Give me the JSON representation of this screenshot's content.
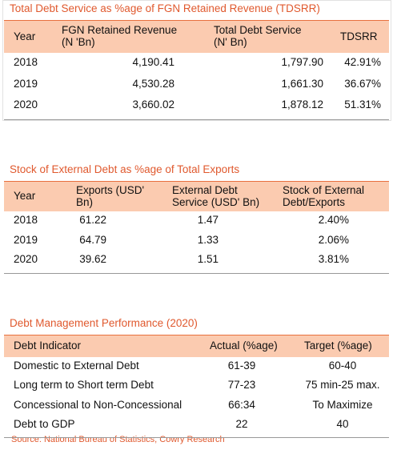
{
  "tables": [
    {
      "title": "Total Debt Service as %age of FGN Retained Revenue (TDSRR)",
      "headers": [
        "Year",
        "FGN Retained Revenue\n(N 'Bn)",
        "Total Debt Service\n(N' Bn)",
        "TDSRR"
      ],
      "rows": [
        [
          "2018",
          "4,190.41",
          "1,797.90",
          "42.91%"
        ],
        [
          "2019",
          "4,530.28",
          "1,661.30",
          "36.67%"
        ],
        [
          "2020",
          "3,660.02",
          "1,878.12",
          "51.31%"
        ]
      ]
    },
    {
      "title": "Stock of External Debt as %age of Total Exports",
      "headers": [
        "Year",
        "Exports (USD'\nBn)",
        "External Debt\nService (USD' Bn)",
        "Stock of External\nDebt/Exports"
      ],
      "rows": [
        [
          "2018",
          "61.22",
          "1.47",
          "2.40%"
        ],
        [
          "2019",
          "64.79",
          "1.33",
          "2.06%"
        ],
        [
          "2020",
          "39.62",
          "1.51",
          "3.81%"
        ]
      ]
    },
    {
      "title": "Debt Management Performance (2020)",
      "headers": [
        "Debt Indicator",
        "Actual (%age)",
        "Target (%age)"
      ],
      "rows": [
        [
          "Domestic to External Debt",
          "61-39",
          "60-40"
        ],
        [
          "Long term to Short term Debt",
          "77-23",
          "75 min-25 max."
        ],
        [
          "Concessional to Non-Concessional",
          "66:34",
          "To Maximize"
        ],
        [
          "Debt to GDP",
          "22",
          "40"
        ]
      ]
    }
  ],
  "source": "Source: National Bureau of Statistics, Cowry Research"
}
